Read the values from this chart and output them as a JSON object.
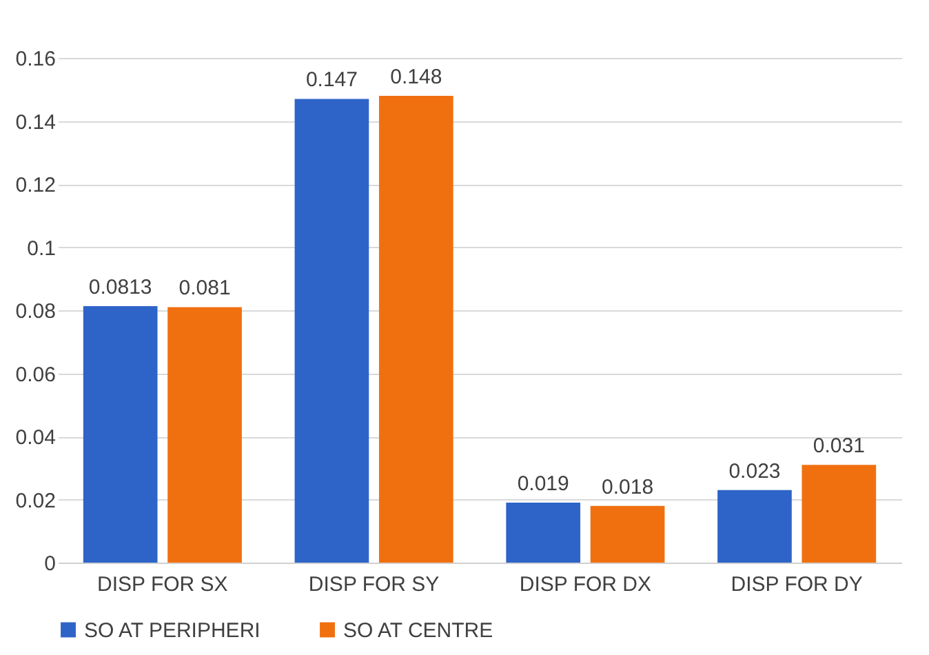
{
  "chart_data": {
    "type": "bar",
    "categories": [
      "DISP FOR SX",
      "DISP FOR SY",
      "DISP FOR DX",
      "DISP FOR DY"
    ],
    "series": [
      {
        "name": "SO AT PERIPHERI",
        "color": "#2e64c8",
        "values": [
          0.0813,
          0.147,
          0.019,
          0.023
        ]
      },
      {
        "name": "SO AT CENTRE",
        "color": "#f07010",
        "values": [
          0.081,
          0.148,
          0.018,
          0.031
        ]
      }
    ],
    "ylim": [
      0,
      0.16
    ],
    "yticks": [
      0,
      0.02,
      0.04,
      0.06,
      0.08,
      0.1,
      0.12,
      0.14,
      0.16
    ],
    "grid": "y",
    "legend": "bottom",
    "data_labels": true
  }
}
